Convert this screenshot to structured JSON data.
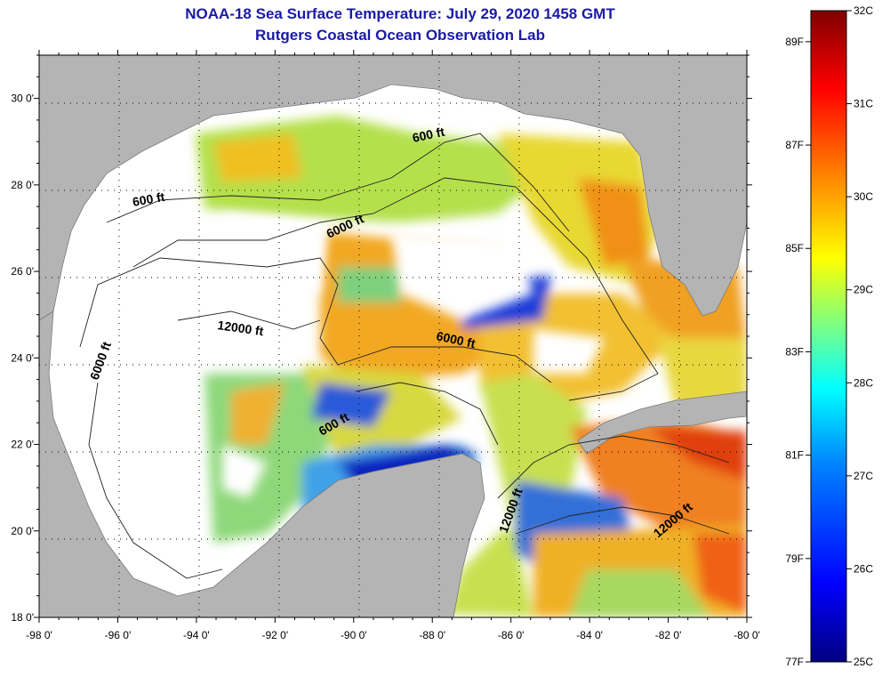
{
  "title": "NOAA-18 Sea Surface Temperature:  July 29, 2020 1458 GMT",
  "subtitle": "Rutgers Coastal Ocean Observation Lab",
  "map": {
    "lon_ticks": [
      "-98 0'",
      "-96 0'",
      "-94 0'",
      "-92 0'",
      "-90 0'",
      "-88 0'",
      "-86 0'",
      "-84 0'",
      "-82 0'",
      "-80 0'"
    ],
    "lat_ticks": [
      "30 0'",
      "28 0'",
      "26 0'",
      "24 0'",
      "22 0'",
      "20 0'",
      "18 0'"
    ],
    "lon_range": [
      -98,
      -80
    ],
    "lat_range": [
      18,
      31
    ],
    "contour_labels": [
      "600 ft",
      "600 ft",
      "6000 ft",
      "12000 ft",
      "6000 ft",
      "6000 ft",
      "600 ft",
      "12000 ft",
      "12000 ft"
    ]
  },
  "colorbar": {
    "celsius": [
      "32C",
      "31C",
      "30C",
      "29C",
      "28C",
      "27C",
      "26C",
      "25C"
    ],
    "fahrenheit": [
      "89F",
      "87F",
      "85F",
      "83F",
      "81F",
      "79F",
      "77F"
    ],
    "colors": [
      "#00007f",
      "#0000ff",
      "#0080ff",
      "#00ffff",
      "#80ff80",
      "#ffff00",
      "#ff8000",
      "#ff0000",
      "#7f0000"
    ]
  },
  "colors": {
    "land": "#b4b4b4",
    "cloud": "#ffffff",
    "title": "#1a1aa8"
  }
}
